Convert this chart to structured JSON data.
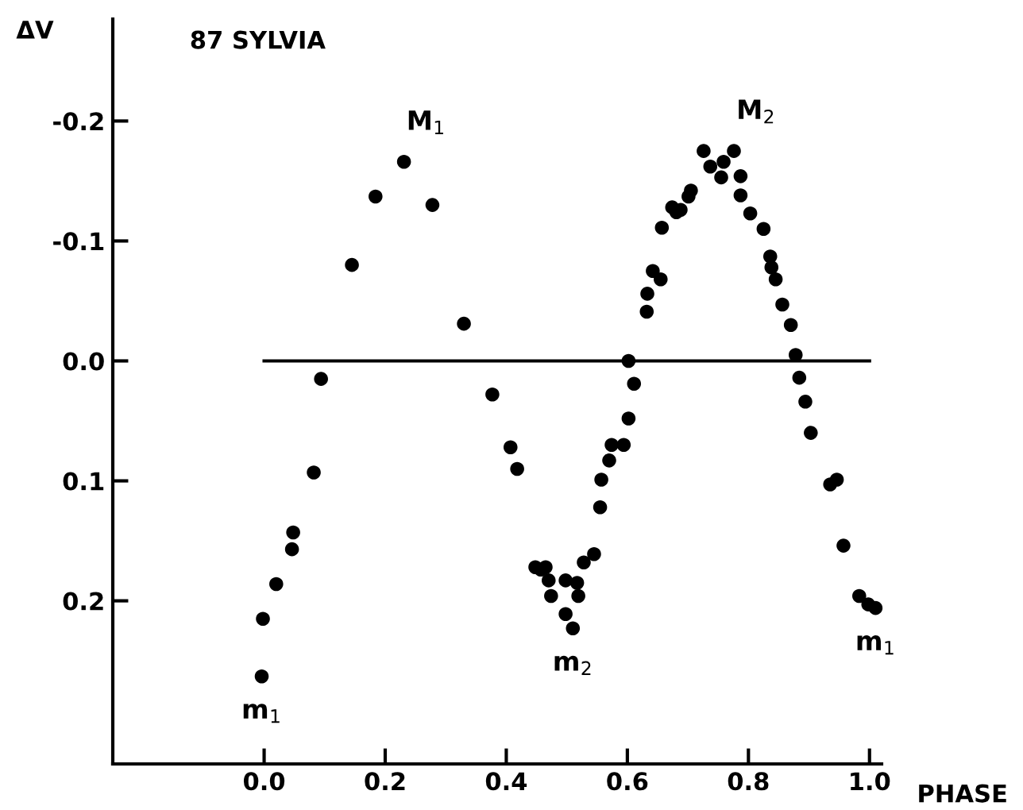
{
  "chart_data": {
    "type": "scatter",
    "title": "87 SYLVIA",
    "xlabel": "PHASE",
    "ylabel": "ΔV",
    "x": [
      -0.004,
      -0.002,
      0.02,
      0.046,
      0.048,
      0.082,
      0.094,
      0.145,
      0.184,
      0.231,
      0.278,
      0.33,
      0.377,
      0.407,
      0.418,
      0.448,
      0.457,
      0.465,
      0.47,
      0.474,
      0.498,
      0.51,
      0.498,
      0.517,
      0.519,
      0.528,
      0.545,
      0.555,
      0.557,
      0.57,
      0.574,
      0.594,
      0.602,
      0.611,
      0.602,
      0.632,
      0.633,
      0.642,
      0.655,
      0.657,
      0.674,
      0.681,
      0.688,
      0.701,
      0.705,
      0.726,
      0.737,
      0.755,
      0.759,
      0.776,
      0.787,
      0.787,
      0.803,
      0.825,
      0.836,
      0.838,
      0.845,
      0.856,
      0.87,
      0.878,
      0.884,
      0.894,
      0.903,
      0.935,
      0.946,
      0.957,
      0.983,
      0.998,
      1.01
    ],
    "values": [
      0.263,
      0.215,
      0.186,
      0.157,
      0.143,
      0.093,
      0.015,
      -0.08,
      -0.137,
      -0.166,
      -0.13,
      -0.031,
      0.028,
      0.072,
      0.09,
      0.172,
      0.174,
      0.172,
      0.183,
      0.196,
      0.211,
      0.223,
      0.183,
      0.185,
      0.196,
      0.168,
      0.161,
      0.122,
      0.099,
      0.083,
      0.07,
      0.07,
      0.048,
      0.019,
      0.0,
      -0.041,
      -0.056,
      -0.075,
      -0.068,
      -0.111,
      -0.128,
      -0.124,
      -0.126,
      -0.137,
      -0.142,
      -0.175,
      -0.162,
      -0.153,
      -0.166,
      -0.175,
      -0.154,
      -0.138,
      -0.123,
      -0.11,
      -0.087,
      -0.078,
      -0.068,
      -0.047,
      -0.03,
      -0.005,
      0.014,
      0.034,
      0.06,
      0.103,
      0.099,
      0.154,
      0.196,
      0.203,
      0.206
    ],
    "color": "#000000",
    "marker": "circle",
    "xlim": [
      -0.25,
      1.02
    ],
    "ylim": [
      0.336,
      -0.285
    ],
    "xticks": [
      {
        "value": 0.0,
        "label": "0.0"
      },
      {
        "value": 0.2,
        "label": "0.2"
      },
      {
        "value": 0.4,
        "label": "0.4"
      },
      {
        "value": 0.6,
        "label": "0.6"
      },
      {
        "value": 0.8,
        "label": "0.8"
      },
      {
        "value": 1.0,
        "label": "1.0"
      }
    ],
    "yticks": [
      {
        "value": -0.2,
        "label": "-0.2"
      },
      {
        "value": -0.1,
        "label": "-0.1"
      },
      {
        "value": 0.0,
        "label": "0.0"
      },
      {
        "value": 0.1,
        "label": "0.1"
      },
      {
        "value": 0.2,
        "label": "0.2"
      }
    ],
    "ref_lines": [
      {
        "axis": "y",
        "value": 0.0,
        "color": "#000000"
      }
    ],
    "annotations": [
      {
        "text": "M$_{1}$",
        "x": 0.231,
        "y": -0.166
      },
      {
        "text": "M$_{2}$",
        "x": 0.776,
        "y": -0.175
      },
      {
        "text": "m$_{1}$",
        "x": -0.004,
        "y": 0.263
      },
      {
        "text": "m$_{2}$",
        "x": 0.51,
        "y": 0.223
      },
      {
        "text": "m$_{1}$",
        "x": 1.01,
        "y": 0.206
      }
    ],
    "grid": false,
    "legend": false
  }
}
